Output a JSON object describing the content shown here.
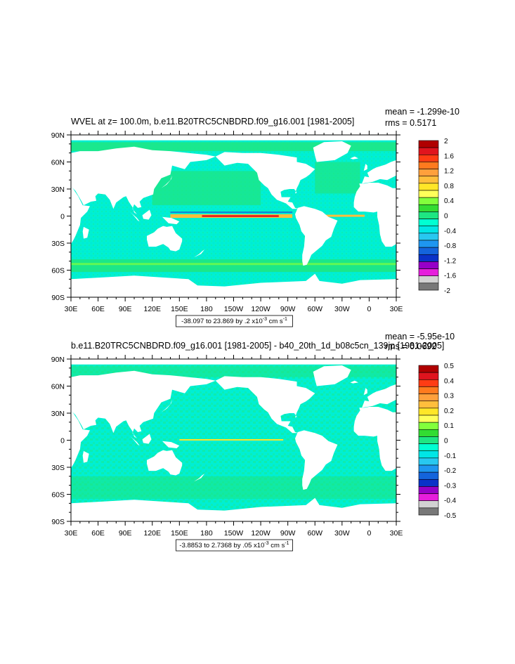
{
  "chart_data": [
    {
      "type": "heatmap",
      "title": "WVEL at z= 100.0m, b.e11.B20TRC5CNBDRD.f09_g16.001 [1981-2005]",
      "stats": {
        "mean": "mean = -1.299e-10",
        "rms": "rms = 0.5171"
      },
      "x_ticks": [
        "30E",
        "60E",
        "90E",
        "120E",
        "150E",
        "180",
        "150W",
        "120W",
        "90W",
        "60W",
        "30W",
        "0",
        "30E"
      ],
      "y_ticks": [
        "90N",
        "60N",
        "30N",
        "0",
        "30S",
        "60S",
        "90S"
      ],
      "xlim": [
        30,
        390
      ],
      "ylim": [
        -90,
        90
      ],
      "range_note": {
        "base": "-38.097 to 23.869 by .2 x10",
        "exp": "-3",
        "unit": " cm s",
        "unit_exp": "-1"
      },
      "colorbar": {
        "labels": [
          "2",
          "1.6",
          "1.2",
          "0.8",
          "0.4",
          "0",
          "-0.4",
          "-0.8",
          "-1.2",
          "-1.6",
          "-2"
        ],
        "colors": [
          "#b00000",
          "#e0141e",
          "#ff3c14",
          "#ff7a1e",
          "#ffa03c",
          "#ffbe3c",
          "#ffe628",
          "#ffff5a",
          "#82ff3c",
          "#32dc32",
          "#1ee682",
          "#00ffd2",
          "#00e6e6",
          "#28c8f0",
          "#1e96f0",
          "#1464dc",
          "#0a32c8",
          "#9600c8",
          "#e61edc",
          "#d2d2d2",
          "#787878"
        ]
      }
    },
    {
      "type": "heatmap",
      "title": "b.e11.B20TRC5CNBDRD.f09_g16.001 [1981-2005] - b40_20th_1d_b08c5cn_139jp [1981-2005]",
      "stats": {
        "mean": "mean = -5.95e-10",
        "rms": "rms = 0.0692"
      },
      "x_ticks": [
        "30E",
        "60E",
        "90E",
        "120E",
        "150E",
        "180",
        "150W",
        "120W",
        "90W",
        "60W",
        "30W",
        "0",
        "30E"
      ],
      "y_ticks": [
        "90N",
        "60N",
        "30N",
        "0",
        "30S",
        "60S",
        "90S"
      ],
      "xlim": [
        30,
        390
      ],
      "ylim": [
        -90,
        90
      ],
      "range_note": {
        "base": "-3.8853 to 2.7368 by .05 x10",
        "exp": "-3",
        "unit": " cm s",
        "unit_exp": "-1"
      },
      "colorbar": {
        "labels": [
          "0.5",
          "0.4",
          "0.3",
          "0.2",
          "0.1",
          "0",
          "-0.1",
          "-0.2",
          "-0.3",
          "-0.4",
          "-0.5"
        ],
        "colors": [
          "#b00000",
          "#e0141e",
          "#ff3c14",
          "#ff7a1e",
          "#ffa03c",
          "#ffbe3c",
          "#ffe628",
          "#ffff5a",
          "#82ff3c",
          "#32dc32",
          "#1ee682",
          "#00ffd2",
          "#00e6e6",
          "#28c8f0",
          "#1e96f0",
          "#1464dc",
          "#0a32c8",
          "#9600c8",
          "#e61edc",
          "#d2d2d2",
          "#787878"
        ]
      }
    }
  ]
}
